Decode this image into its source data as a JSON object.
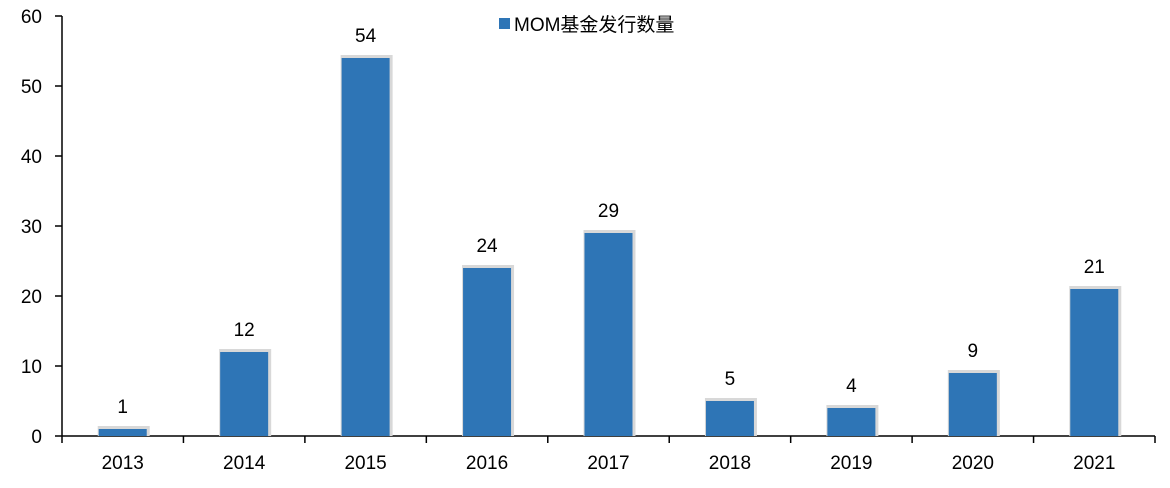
{
  "chart_data": {
    "type": "bar",
    "title": "",
    "xlabel": "",
    "ylabel": "",
    "categories": [
      "2013",
      "2014",
      "2015",
      "2016",
      "2017",
      "2018",
      "2019",
      "2020",
      "2021"
    ],
    "series": [
      {
        "name": "MOM基金发行数量",
        "values": [
          1,
          12,
          54,
          24,
          29,
          5,
          4,
          9,
          21
        ],
        "color": "#2E75B6"
      }
    ],
    "ylim": [
      0,
      60
    ],
    "yticks": [
      "0",
      "10",
      "20",
      "30",
      "40",
      "50",
      "60"
    ],
    "data_labels": [
      "1",
      "12",
      "54",
      "24",
      "29",
      "5",
      "4",
      "9",
      "21"
    ],
    "grid": false,
    "legend_position": "top-center"
  }
}
